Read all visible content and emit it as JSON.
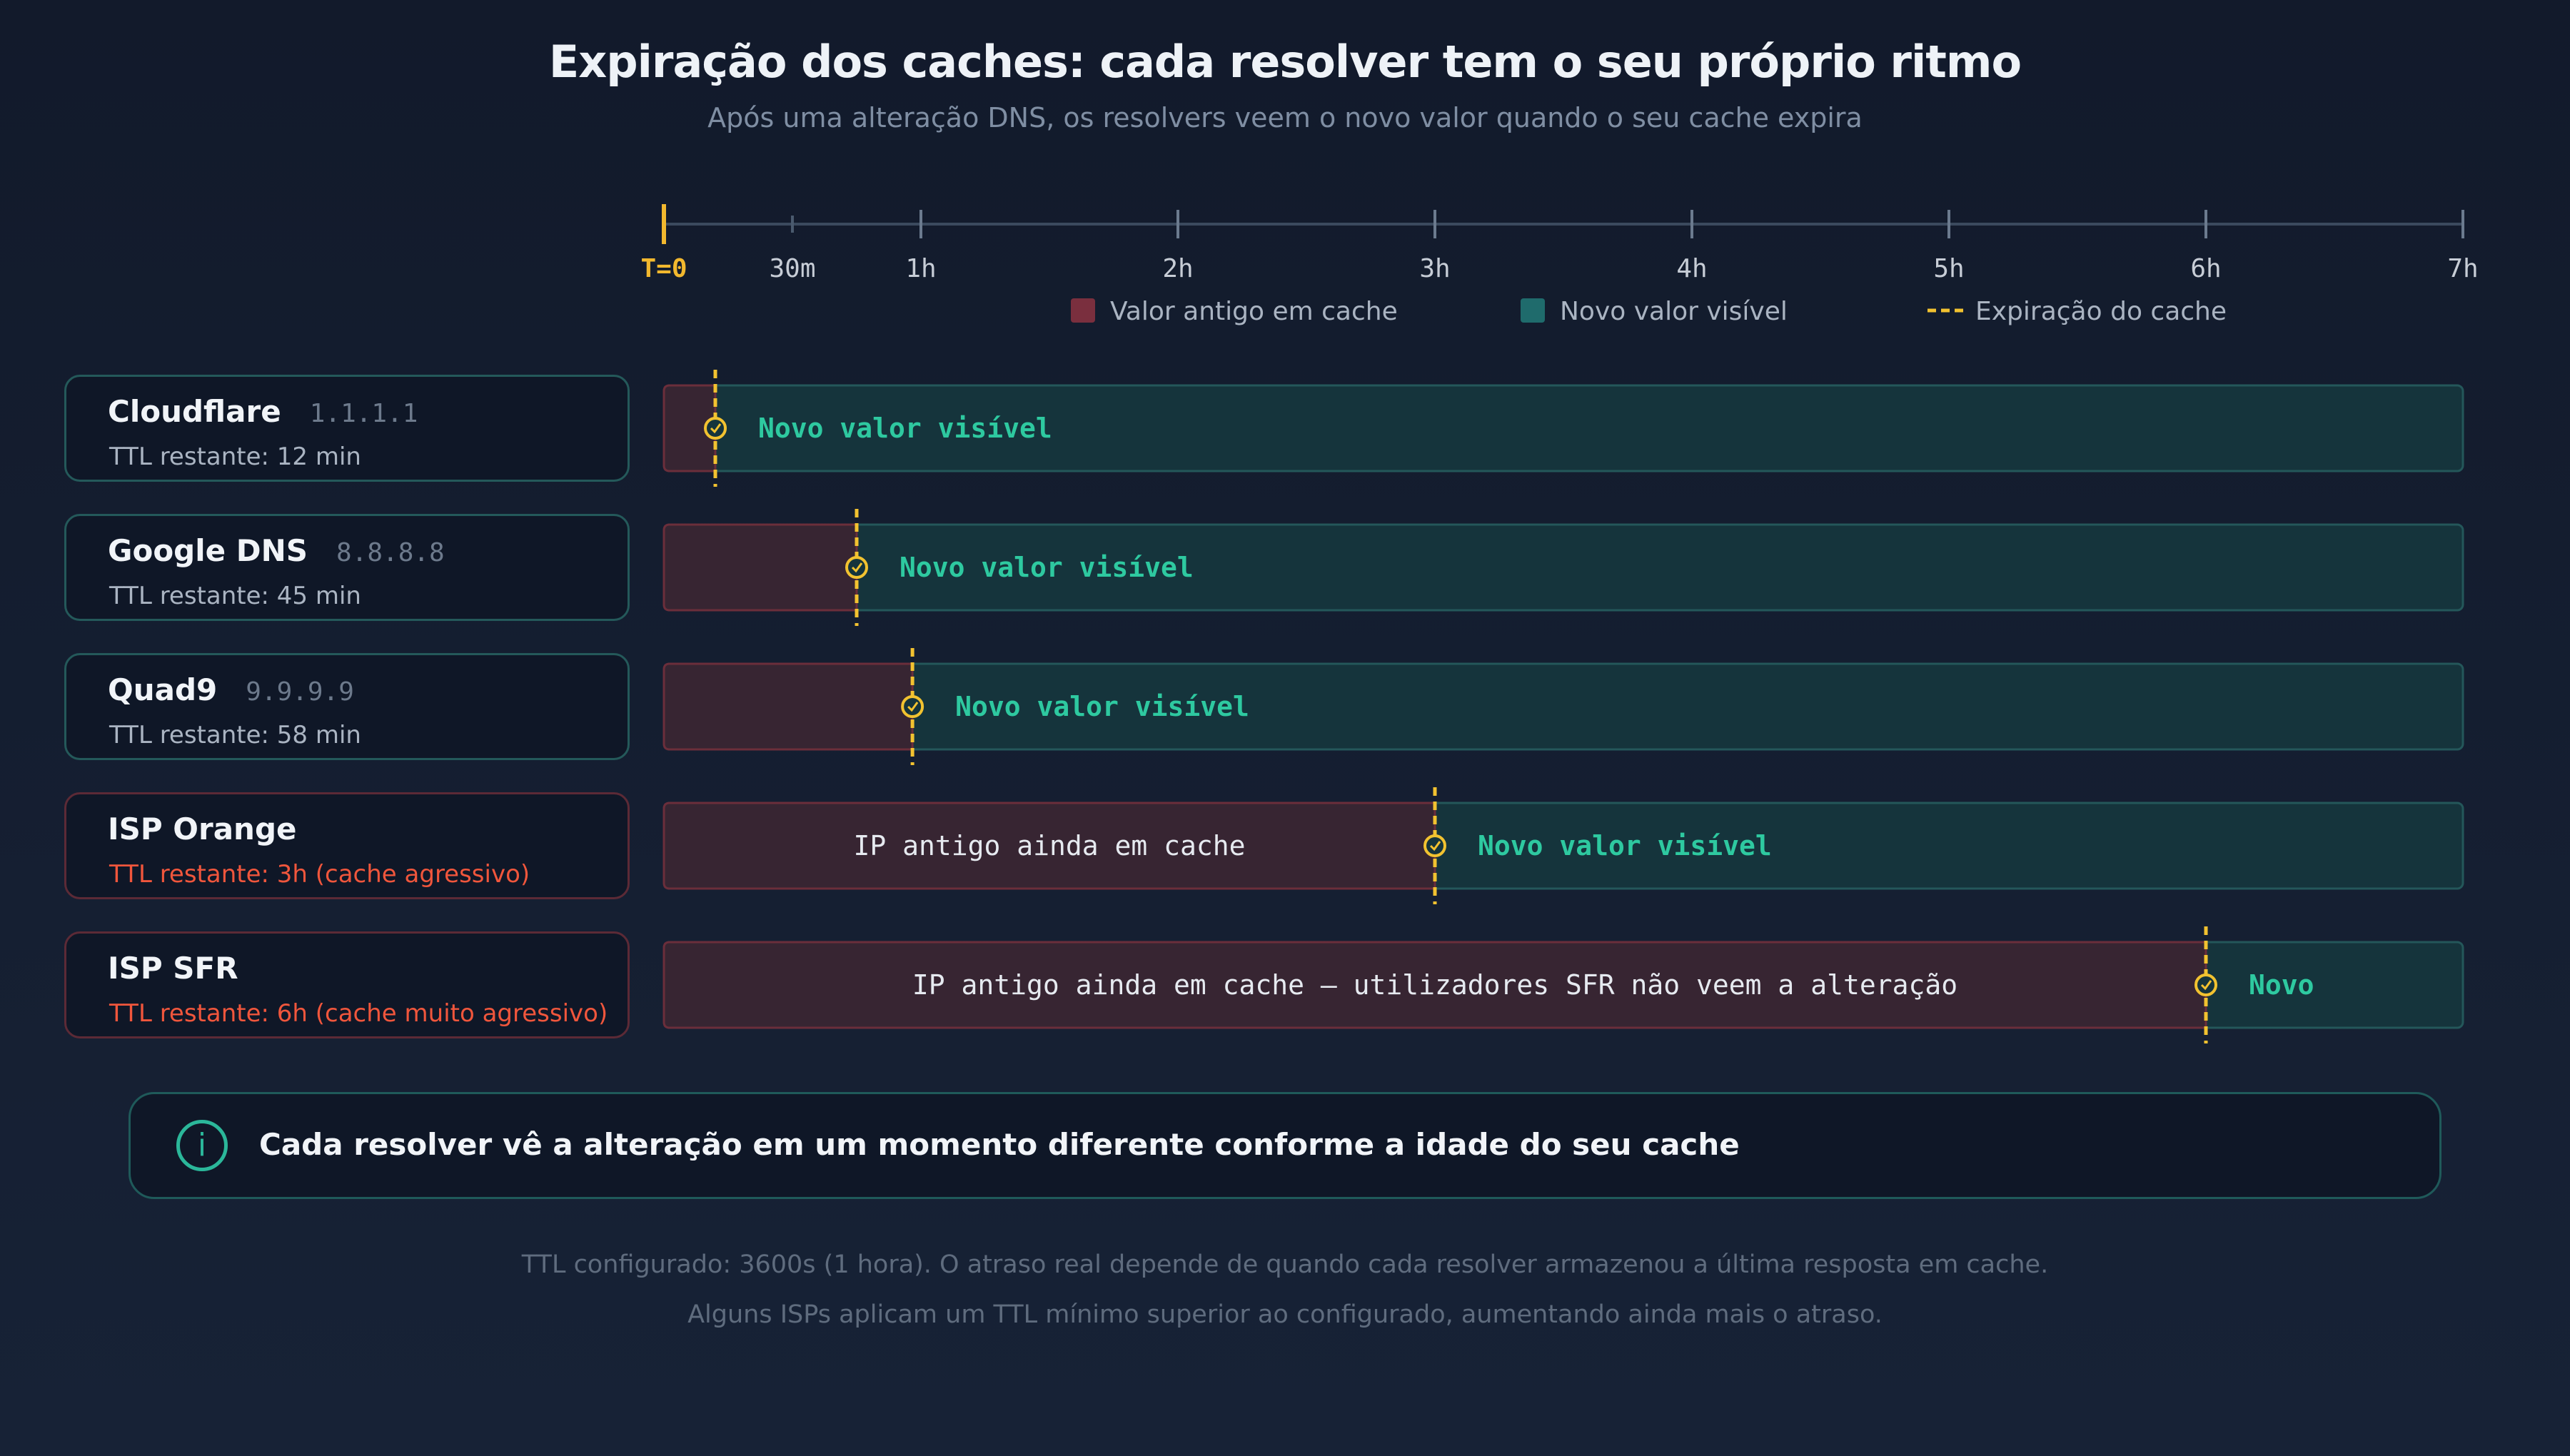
{
  "header": {
    "title": "Expiração dos caches: cada resolver tem o seu próprio ritmo",
    "subtitle": "Após uma alteração DNS, os resolvers veem o novo valor quando o seu cache expira"
  },
  "legend": {
    "old": "Valor antigo em cache",
    "new": "Novo valor visível",
    "expiry": "Expiração do cache"
  },
  "colors": {
    "old_fill": "#372532",
    "old_stroke": "#6b2e3b",
    "new_fill": "#15343c",
    "new_stroke": "#24575a",
    "expiry": "#f2c230",
    "new_text": "#2ec9a0",
    "old_text": "#e6eaf0",
    "axis": "#3b4a5e",
    "tick_text": "#c7cdd6",
    "origin": "#f2b82e"
  },
  "chart_data": {
    "type": "timeline",
    "x_unit": "hours",
    "xlim": [
      0,
      7
    ],
    "ticks": [
      {
        "value": 0,
        "label": "T=0"
      },
      {
        "value": 0.5,
        "label": "30m"
      },
      {
        "value": 1,
        "label": "1h"
      },
      {
        "value": 2,
        "label": "2h"
      },
      {
        "value": 3,
        "label": "3h"
      },
      {
        "value": 4,
        "label": "4h"
      },
      {
        "value": 5,
        "label": "5h"
      },
      {
        "value": 6,
        "label": "6h"
      },
      {
        "value": 7,
        "label": "7h"
      }
    ],
    "rows": [
      {
        "resolver": "Cloudflare",
        "ip": "1.1.1.1",
        "ttl": "TTL restante: 12 min",
        "warn": false,
        "expiry_h": 0.2,
        "old_label": "",
        "new_label": "Novo valor visível"
      },
      {
        "resolver": "Google DNS",
        "ip": "8.8.8.8",
        "ttl": "TTL restante: 45 min",
        "warn": false,
        "expiry_h": 0.75,
        "old_label": "",
        "new_label": "Novo valor visível"
      },
      {
        "resolver": "Quad9",
        "ip": "9.9.9.9",
        "ttl": "TTL restante: 58 min",
        "warn": false,
        "expiry_h": 0.967,
        "old_label": "",
        "new_label": "Novo valor visível"
      },
      {
        "resolver": "ISP Orange",
        "ip": "",
        "ttl": "TTL restante: 3h (cache agressivo)",
        "warn": true,
        "expiry_h": 3,
        "old_label": "IP antigo ainda em cache",
        "new_label": "Novo valor visível"
      },
      {
        "resolver": "ISP SFR",
        "ip": "",
        "ttl": "TTL restante: 6h (cache muito agressivo)",
        "warn": true,
        "expiry_h": 6,
        "old_label": "IP antigo ainda em cache — utilizadores SFR não veem a alteração",
        "new_label": "Novo"
      }
    ]
  },
  "banner": {
    "icon": "info-icon",
    "text": "Cada resolver vê a alteração em um momento diferente conforme a idade do seu cache"
  },
  "footer": {
    "line1": "TTL configurado: 3600s (1 hora). O atraso real depende de quando cada resolver armazenou a última resposta em cache.",
    "line2": "Alguns ISPs aplicam um TTL mínimo superior ao configurado, aumentando ainda mais o atraso."
  }
}
